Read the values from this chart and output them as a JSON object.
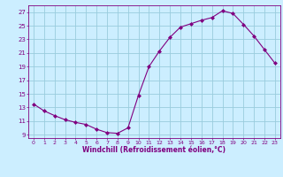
{
  "x": [
    0,
    1,
    2,
    3,
    4,
    5,
    6,
    7,
    8,
    9,
    10,
    11,
    12,
    13,
    14,
    15,
    16,
    17,
    18,
    19,
    20,
    21,
    22,
    23
  ],
  "y": [
    13.5,
    12.5,
    11.8,
    11.2,
    10.8,
    10.5,
    9.8,
    9.3,
    9.2,
    10.0,
    14.8,
    19.0,
    21.3,
    23.3,
    24.8,
    25.3,
    25.8,
    26.2,
    27.2,
    26.8,
    25.2,
    23.5,
    21.5,
    19.5
  ],
  "line_color": "#800080",
  "marker": "D",
  "marker_size": 2,
  "bg_color": "#cceeff",
  "grid_color": "#99ccdd",
  "xlabel": "Windchill (Refroidissement éolien,°C)",
  "xlabel_color": "#800080",
  "tick_color": "#800080",
  "ylabel_ticks": [
    9,
    11,
    13,
    15,
    17,
    19,
    21,
    23,
    25,
    27
  ],
  "xlim": [
    -0.5,
    23.5
  ],
  "ylim": [
    8.5,
    28.0
  ],
  "xticks": [
    0,
    1,
    2,
    3,
    4,
    5,
    6,
    7,
    8,
    9,
    10,
    11,
    12,
    13,
    14,
    15,
    16,
    17,
    18,
    19,
    20,
    21,
    22,
    23
  ]
}
